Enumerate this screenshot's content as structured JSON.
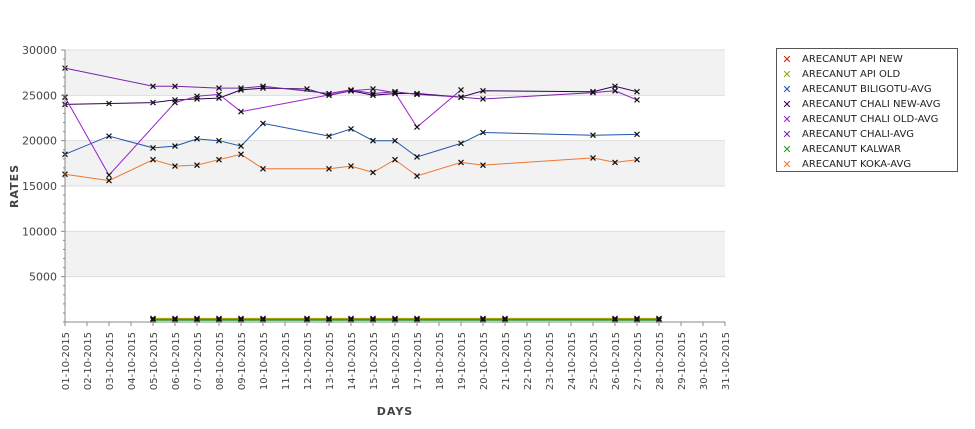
{
  "chart_data": {
    "type": "line",
    "title": "",
    "xlabel": "DAYS",
    "ylabel": "RATES",
    "ylim": [
      0,
      30000
    ],
    "yticks": [
      5000,
      10000,
      15000,
      20000,
      25000,
      30000
    ],
    "grid": "alternating horizontal bands",
    "legend_position": "right",
    "x": [
      "01-10-2015",
      "02-10-2015",
      "03-10-2015",
      "04-10-2015",
      "05-10-2015",
      "06-10-2015",
      "07-10-2015",
      "08-10-2015",
      "09-10-2015",
      "10-10-2015",
      "11-10-2015",
      "12-10-2015",
      "13-10-2015",
      "14-10-2015",
      "15-10-2015",
      "16-10-2015",
      "17-10-2015",
      "18-10-2015",
      "19-10-2015",
      "20-10-2015",
      "21-10-2015",
      "22-10-2015",
      "23-10-2015",
      "24-10-2015",
      "25-10-2015",
      "26-10-2015",
      "27-10-2015",
      "28-10-2015",
      "29-10-2015",
      "30-10-2015",
      "31-10-2015"
    ],
    "series": [
      {
        "name": "ARECANUT API NEW",
        "color": "#cc2200",
        "values": [
          null,
          null,
          null,
          null,
          300,
          300,
          300,
          300,
          300,
          300,
          null,
          300,
          300,
          300,
          300,
          300,
          300,
          null,
          null,
          300,
          300,
          null,
          null,
          null,
          null,
          300,
          300,
          300,
          null,
          null,
          null
        ]
      },
      {
        "name": "ARECANUT API OLD",
        "color": "#99aa00",
        "values": [
          null,
          null,
          null,
          null,
          400,
          400,
          400,
          400,
          400,
          400,
          null,
          400,
          400,
          400,
          400,
          400,
          400,
          null,
          null,
          400,
          400,
          null,
          null,
          null,
          null,
          400,
          400,
          400,
          null,
          null,
          null
        ]
      },
      {
        "name": "ARECANUT BILIGOTU-AVG",
        "color": "#2255aa",
        "values": [
          18500,
          null,
          20500,
          null,
          19200,
          19400,
          20200,
          20000,
          19400,
          21900,
          null,
          null,
          20500,
          21300,
          20000,
          20000,
          18200,
          null,
          19700,
          20900,
          null,
          null,
          null,
          null,
          20600,
          null,
          20700,
          null,
          null,
          null,
          null
        ]
      },
      {
        "name": "ARECANUT CHALI NEW-AVG",
        "color": "#330055",
        "values": [
          24000,
          null,
          24100,
          null,
          24200,
          24500,
          24600,
          24700,
          25600,
          25800,
          null,
          25700,
          25000,
          25500,
          25000,
          25200,
          25200,
          null,
          24800,
          25500,
          null,
          null,
          null,
          null,
          25400,
          26000,
          25400,
          null,
          null,
          null,
          null
        ]
      },
      {
        "name": "ARECANUT CHALI OLD-AVG",
        "color": "#9922cc",
        "values": [
          24800,
          null,
          16200,
          null,
          null,
          24200,
          24900,
          25100,
          23200,
          null,
          null,
          null,
          null,
          25500,
          25700,
          25300,
          21500,
          null,
          25600,
          null,
          null,
          null,
          null,
          null,
          null,
          null,
          null,
          null,
          null,
          null,
          null
        ]
      },
      {
        "name": "ARECANUT CHALI-AVG",
        "color": "#7a22aa",
        "values": [
          28000,
          null,
          null,
          null,
          26000,
          26000,
          null,
          25800,
          25800,
          26000,
          null,
          null,
          25200,
          25600,
          25200,
          25400,
          25100,
          null,
          24800,
          24600,
          null,
          null,
          null,
          null,
          25300,
          25500,
          24500,
          null,
          null,
          null,
          null
        ]
      },
      {
        "name": "ARECANUT KALWAR",
        "color": "#229922",
        "values": [
          null,
          null,
          null,
          null,
          200,
          200,
          200,
          200,
          200,
          200,
          null,
          200,
          200,
          200,
          200,
          200,
          200,
          null,
          null,
          200,
          200,
          null,
          null,
          null,
          null,
          200,
          200,
          200,
          null,
          null,
          null
        ]
      },
      {
        "name": "ARECANUT KOKA-AVG",
        "color": "#ee7733",
        "values": [
          16300,
          null,
          15600,
          null,
          17900,
          17200,
          17300,
          17900,
          18500,
          16900,
          null,
          null,
          16900,
          17200,
          16500,
          17900,
          16100,
          null,
          17600,
          17300,
          null,
          null,
          null,
          null,
          18100,
          17600,
          17900,
          null,
          null,
          null,
          null
        ]
      }
    ]
  }
}
